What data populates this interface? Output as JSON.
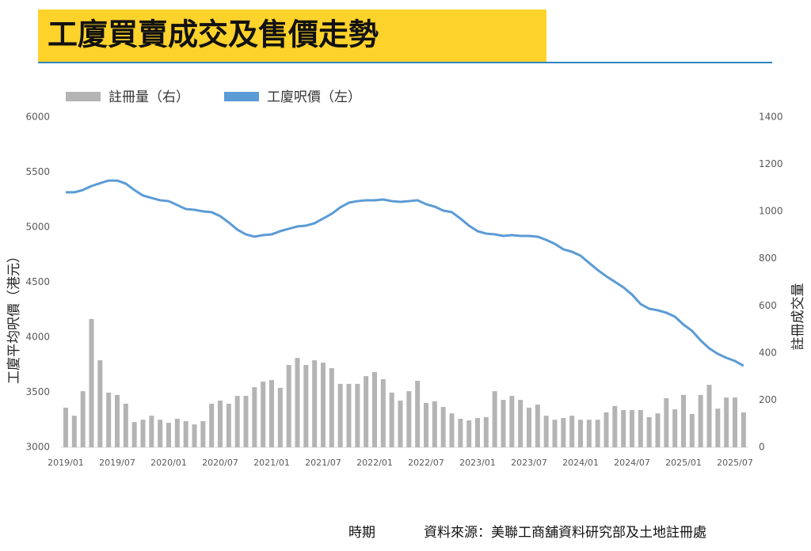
{
  "header": {
    "title": "工廈買賣成交及售價走勢"
  },
  "chart_data": {
    "type": "combo",
    "x_label": "時期",
    "source": "資料來源：美聯工商舖資料研究部及土地註冊處",
    "ylabel": "工廈平均呎價（港元）",
    "y2label": "註冊成交量",
    "categories": [
      "2019/01",
      null,
      null,
      null,
      null,
      null,
      "2019/07",
      null,
      null,
      null,
      null,
      null,
      "2020/01",
      null,
      null,
      null,
      null,
      null,
      "2020/07",
      null,
      null,
      null,
      null,
      null,
      "2021/01",
      null,
      null,
      null,
      null,
      null,
      "2021/07",
      null,
      null,
      null,
      null,
      null,
      "2022/01",
      null,
      null,
      null,
      null,
      null,
      "2022/07",
      null,
      null,
      null,
      null,
      null,
      "2023/01",
      null,
      null,
      null,
      null,
      null,
      "2023/07",
      null,
      null,
      null,
      null,
      null,
      "2024/01",
      null,
      null,
      null,
      null,
      null,
      "2024/07",
      null,
      null,
      null,
      null,
      null,
      "2025/01",
      null,
      null,
      null,
      null,
      null,
      "2025/07",
      null
    ],
    "series": [
      {
        "name": "註冊量（右）",
        "type": "bar",
        "axis": "y2",
        "color": "#b4b4b4",
        "values": [
          168,
          134,
          238,
          544,
          369,
          232,
          222,
          185,
          107,
          117,
          134,
          117,
          104,
          121,
          111,
          97,
          111,
          185,
          198,
          185,
          218,
          218,
          255,
          279,
          285,
          252,
          349,
          379,
          349,
          369,
          359,
          336,
          269,
          269,
          269,
          302,
          319,
          289,
          232,
          198,
          238,
          282,
          188,
          195,
          171,
          144,
          121,
          114,
          124,
          128,
          238,
          201,
          218,
          201,
          168,
          181,
          134,
          117,
          124,
          134,
          117,
          117,
          117,
          148,
          175,
          158,
          158,
          158,
          128,
          144,
          208,
          161,
          222,
          141,
          222,
          265,
          164,
          211,
          211,
          148
        ]
      },
      {
        "name": "工廈呎價（左）",
        "type": "line",
        "color": "#5b9bd5",
        "values": [
          5317,
          5317,
          5338,
          5374,
          5400,
          5424,
          5424,
          5396,
          5338,
          5288,
          5266,
          5245,
          5237,
          5201,
          5165,
          5158,
          5144,
          5137,
          5101,
          5043,
          4978,
          4935,
          4914,
          4928,
          4935,
          4964,
          4986,
          5007,
          5014,
          5036,
          5079,
          5122,
          5180,
          5223,
          5237,
          5245,
          5245,
          5252,
          5237,
          5230,
          5237,
          5245,
          5209,
          5187,
          5151,
          5137,
          5079,
          5014,
          4964,
          4942,
          4935,
          4921,
          4928,
          4921,
          4921,
          4914,
          4885,
          4849,
          4799,
          4777,
          4741,
          4676,
          4611,
          4554,
          4504,
          4453,
          4388,
          4302,
          4259,
          4245,
          4223,
          4187,
          4115,
          4058,
          3971,
          3899,
          3849,
          3813,
          3784,
          3741
        ]
      }
    ],
    "ylim": [
      3000,
      6000
    ],
    "yticks": [
      3000,
      3500,
      4000,
      4500,
      5000,
      5500,
      6000
    ],
    "y2lim": [
      0,
      1400
    ],
    "y2ticks": [
      0,
      200,
      400,
      600,
      800,
      1000,
      1200,
      1400
    ],
    "grid": false
  }
}
